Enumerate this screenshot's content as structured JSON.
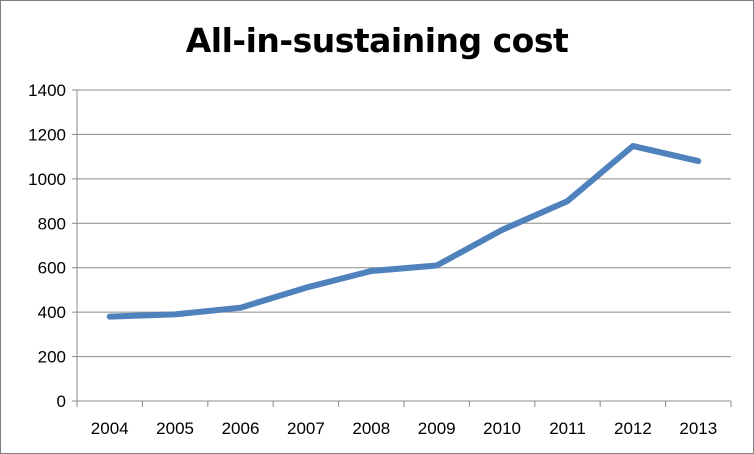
{
  "chart_data": {
    "type": "line",
    "title": "All-in-sustaining cost",
    "xlabel": "",
    "ylabel": "",
    "categories": [
      "2004",
      "2005",
      "2006",
      "2007",
      "2008",
      "2009",
      "2010",
      "2011",
      "2012",
      "2013"
    ],
    "series": [
      {
        "name": "All-in-sustaining cost",
        "values": [
          380,
          390,
          420,
          510,
          585,
          610,
          770,
          900,
          1148,
          1080
        ],
        "color": "#4f81bd"
      }
    ],
    "ylim": [
      0,
      1400
    ],
    "yticks": [
      0,
      200,
      400,
      600,
      800,
      1000,
      1200,
      1400
    ],
    "grid": true,
    "legend": "none"
  }
}
